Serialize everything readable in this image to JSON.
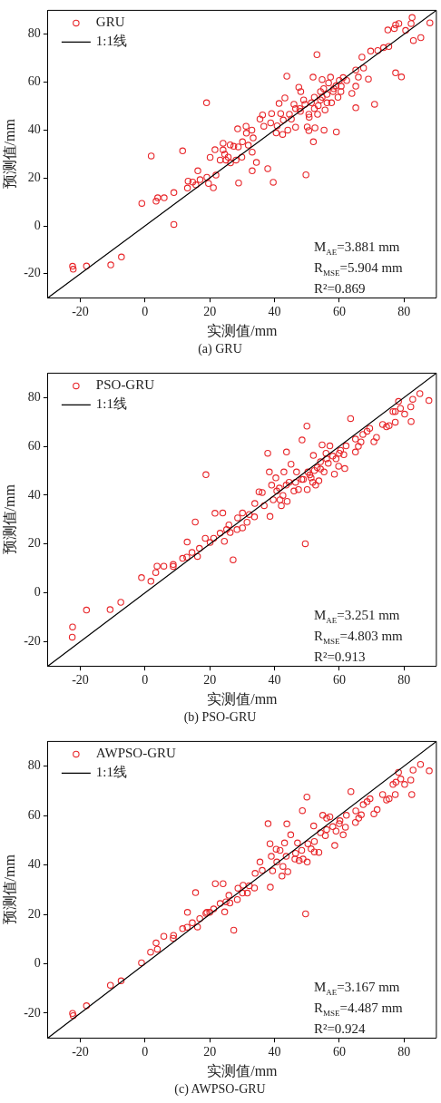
{
  "chart_data": [
    {
      "type": "scatter",
      "title": "(a) GRU",
      "xlabel": "实测值/mm",
      "ylabel": "预测值/mm",
      "xlim": [
        -30,
        90
      ],
      "ylim": [
        -30,
        90
      ],
      "xticks": [
        -20,
        0,
        20,
        40,
        60,
        80
      ],
      "yticks": [
        -20,
        0,
        20,
        40,
        60,
        80
      ],
      "legend": "top left",
      "annotations": [
        "M$_{AE}$=3.881 mm",
        "R$_{MSE}$=5.904 mm",
        "R²=0.869"
      ],
      "series": [
        {
          "name": "GRU",
          "color": "#e8262a",
          "marker": "circle",
          "x": [
            -22.4,
            -22.2,
            -18.1,
            -10.6,
            -7.3,
            -1.0,
            1.9,
            3.4,
            3.9,
            5.9,
            8.9,
            8.9,
            11.6,
            13.1,
            13.3,
            14.7,
            15.7,
            16.3,
            17.0,
            19.0,
            19.1,
            19.6,
            21.1,
            20.1,
            21.6,
            21.9,
            23.2,
            24.1,
            24.1,
            24.6,
            25.0,
            25.7,
            26.4,
            26.3,
            27.4,
            28.8,
            28.9,
            28.1,
            28.6,
            29.9,
            30.1,
            31.2,
            31.3,
            31.9,
            33.0,
            33.1,
            33.1,
            33.4,
            34.4,
            35.5,
            36.3,
            36.7,
            37.9,
            39.1,
            39.6,
            40.5,
            41.4,
            41.9,
            42.5,
            43.2,
            43.8,
            44.1,
            45.2,
            46.0,
            46.5,
            47.5,
            47.8,
            48.1,
            49.0,
            49.7,
            50.1,
            50.6,
            50.7,
            51.9,
            52.0,
            52.3,
            52.5,
            53.1,
            53.5,
            54.2,
            54.7,
            55.3,
            55.6,
            56.2,
            56.7,
            57.3,
            57.6,
            58.3,
            59.1,
            59.6,
            60.0,
            60.6,
            61.2,
            62.3,
            63.9,
            65.1,
            65.1,
            65.1,
            65.9,
            67.0,
            67.5,
            69.0,
            69.7,
            70.9,
            71.9,
            73.7,
            75.3,
            75.0,
            77.0,
            77.4,
            78.4,
            77.4,
            79.2,
            80.5,
            82.2,
            82.5,
            82.9,
            85.2,
            88.0,
            46.5,
            49.4,
            51.4,
            52.3,
            54.2,
            56.2,
            58.1,
            59.0,
            50.6,
            44.6,
            42.7,
            40.8,
            38.8,
            53.3,
            55.2,
            60.5,
            48.0,
            54.7
          ],
          "values": [
            -16.9,
            -18.1,
            -16.8,
            -16.3,
            -13.0,
            9.4,
            29.2,
            10.3,
            11.7,
            11.7,
            13.9,
            0.6,
            31.3,
            15.8,
            18.7,
            18.3,
            17.1,
            23.0,
            19.3,
            51.4,
            20.3,
            17.7,
            15.9,
            28.6,
            31.8,
            21.2,
            27.5,
            34.5,
            31.7,
            29.9,
            27.5,
            28.7,
            26.3,
            33.8,
            33.2,
            33.0,
            17.9,
            27.5,
            40.5,
            28.7,
            35.1,
            41.6,
            38.7,
            33.7,
            40.0,
            30.8,
            23.0,
            36.7,
            26.5,
            44.6,
            46.3,
            41.6,
            23.9,
            46.9,
            18.2,
            38.8,
            51.1,
            46.9,
            38.2,
            53.4,
            62.5,
            40.0,
            44.6,
            50.8,
            41.2,
            57.9,
            49.0,
            56.1,
            52.6,
            21.3,
            41.3,
            39.8,
            45.4,
            62.1,
            35.1,
            53.7,
            40.9,
            71.5,
            50.2,
            56.1,
            61.1,
            40.0,
            48.4,
            54.9,
            59.7,
            62.1,
            51.4,
            57.3,
            39.2,
            53.7,
            60.7,
            58.3,
            61.9,
            60.7,
            55.3,
            58.3,
            49.3,
            65.1,
            62.1,
            70.5,
            65.9,
            61.3,
            73.0,
            50.8,
            73.2,
            74.4,
            74.9,
            81.8,
            82.4,
            83.9,
            84.5,
            63.9,
            62.2,
            81.6,
            84.5,
            87.0,
            77.4,
            78.6,
            84.8,
            49.0,
            50.8,
            51.4,
            49.0,
            52.6,
            51.4,
            56.1,
            58.5,
            46.6,
            46.6,
            44.2,
            41.8,
            43.0,
            46.6,
            57.3,
            56.1,
            47.8,
            53.7
          ]
        },
        {
          "name": "1:1线",
          "type": "line",
          "color": "#000000",
          "marker": "none",
          "x": [
            -30,
            90
          ],
          "values": [
            -30,
            90
          ]
        }
      ]
    },
    {
      "type": "scatter",
      "title": "(b) PSO-GRU",
      "xlabel": "实测值/mm",
      "ylabel": "预测值/mm",
      "xlim": [
        -30,
        90
      ],
      "ylim": [
        -30,
        90
      ],
      "xticks": [
        -20,
        0,
        20,
        40,
        60,
        80
      ],
      "yticks": [
        -20,
        0,
        20,
        40,
        60,
        80
      ],
      "legend": "top left",
      "annotations": [
        "M$_{AE}$=3.251 mm",
        "R$_{MSE}$=4.803 mm",
        "R²=0.913"
      ],
      "series": [
        {
          "name": "PSO-GRU",
          "color": "#e8262a",
          "marker": "circle",
          "x": [
            -22.4,
            -22.5,
            -18.1,
            -10.8,
            -7.5,
            -1.1,
            1.8,
            3.3,
            3.7,
            5.8,
            8.7,
            8.7,
            11.6,
            13.0,
            12.9,
            14.5,
            15.5,
            16.2,
            16.8,
            18.6,
            18.8,
            20.1,
            21.2,
            21.6,
            23.2,
            24.0,
            24.5,
            25.2,
            25.9,
            26.3,
            27.2,
            28.4,
            28.6,
            30.1,
            30.1,
            31.5,
            32.2,
            33.8,
            33.9,
            35.2,
            36.2,
            36.8,
            37.9,
            38.4,
            38.6,
            39.1,
            39.6,
            40.4,
            41.5,
            42.1,
            42.9,
            43.7,
            43.9,
            44.5,
            45.1,
            46.0,
            46.8,
            47.4,
            48.5,
            48.9,
            49.5,
            50.0,
            50.1,
            50.9,
            51.8,
            52.0,
            52.7,
            53.2,
            53.7,
            54.7,
            55.3,
            55.9,
            56.6,
            57.1,
            58.5,
            59.0,
            59.8,
            60.4,
            61.4,
            61.7,
            62.1,
            63.5,
            65.0,
            65.0,
            65.9,
            66.7,
            67.3,
            68.6,
            69.4,
            70.7,
            71.5,
            73.4,
            74.6,
            75.4,
            76.6,
            77.3,
            77.3,
            78.3,
            78.9,
            80.2,
            82.1,
            82.2,
            82.7,
            84.9,
            87.7,
            40.7,
            43.6,
            46.5,
            48.4,
            50.3,
            52.3,
            54.2,
            56.1,
            58.0,
            60.0,
            51.3,
            54.2,
            42.6,
            41.7
          ],
          "values": [
            -14.0,
            -18.2,
            -7.1,
            -6.9,
            -3.9,
            6.2,
            4.7,
            8.3,
            10.9,
            10.9,
            11.6,
            10.8,
            14.1,
            20.8,
            14.6,
            16.5,
            29.0,
            14.9,
            18.2,
            22.3,
            48.4,
            20.6,
            22.3,
            32.6,
            24.4,
            32.7,
            21.1,
            25.9,
            27.8,
            24.7,
            13.5,
            25.9,
            30.7,
            32.7,
            26.6,
            28.9,
            32.1,
            31.1,
            36.6,
            41.4,
            41.1,
            35.7,
            57.2,
            49.5,
            31.3,
            44.1,
            38.1,
            47.1,
            42.9,
            35.7,
            49.5,
            57.7,
            37.5,
            45.3,
            52.7,
            41.7,
            49.5,
            42.3,
            62.6,
            46.5,
            20.1,
            68.3,
            42.3,
            48.3,
            45.3,
            56.3,
            44.1,
            51.3,
            45.9,
            60.6,
            49.5,
            57.2,
            53.1,
            60.2,
            48.6,
            54.9,
            51.9,
            58.4,
            56.6,
            50.9,
            60.2,
            71.4,
            57.7,
            63.0,
            60.0,
            61.8,
            64.9,
            66.2,
            67.4,
            61.9,
            63.7,
            69.0,
            68.0,
            68.5,
            74.3,
            69.9,
            74.3,
            78.4,
            75.6,
            73.2,
            76.2,
            70.2,
            79.3,
            81.6,
            78.8,
            41.7,
            44.1,
            45.3,
            46.5,
            49.5,
            50.1,
            53.7,
            54.9,
            56.0,
            57.2,
            47.1,
            50.7,
            39.9,
            38.1
          ]
        },
        {
          "name": "1:1线",
          "type": "line",
          "color": "#000000",
          "marker": "none",
          "x": [
            -30,
            90
          ],
          "values": [
            -30,
            90
          ]
        }
      ]
    },
    {
      "type": "scatter",
      "title": "(c) AWPSO-GRU",
      "xlabel": "实测值/mm",
      "ylabel": "预测值/mm",
      "xlim": [
        -30,
        90
      ],
      "ylim": [
        -30,
        90
      ],
      "xticks": [
        -20,
        0,
        20,
        40,
        60,
        80
      ],
      "yticks": [
        -20,
        0,
        20,
        40,
        60,
        80
      ],
      "legend": "top left",
      "annotations": [
        "M$_{AE}$=3.167 mm",
        "R$_{MSE}$=4.487 mm",
        "R²=0.924"
      ],
      "series": [
        {
          "name": "AWPSO-GRU",
          "color": "#e8262a",
          "marker": "circle",
          "x": [
            -22.4,
            -22.2,
            -18.1,
            -10.7,
            -7.4,
            -1.1,
            1.7,
            3.8,
            3.4,
            5.8,
            8.7,
            8.8,
            11.6,
            13.1,
            13.0,
            14.6,
            15.6,
            16.2,
            16.9,
            18.8,
            19.1,
            20.0,
            21.2,
            21.7,
            23.2,
            24.1,
            24.6,
            25.0,
            25.9,
            26.2,
            27.4,
            28.5,
            28.7,
            30.1,
            30.3,
            31.6,
            32.2,
            33.8,
            34.0,
            35.5,
            36.2,
            38.0,
            38.6,
            38.7,
            39.0,
            39.4,
            40.5,
            41.7,
            42.3,
            43.1,
            43.8,
            44.1,
            45.0,
            46.3,
            47.1,
            47.6,
            48.6,
            48.8,
            49.6,
            50.0,
            50.1,
            52.1,
            52.3,
            53.7,
            54.9,
            55.7,
            56.1,
            57.1,
            58.6,
            59.0,
            60.2,
            61.2,
            61.9,
            62.2,
            63.6,
            65.0,
            65.1,
            66.0,
            66.8,
            67.4,
            68.6,
            69.5,
            70.7,
            71.7,
            73.4,
            74.6,
            75.4,
            76.6,
            77.3,
            77.5,
            78.3,
            79.0,
            80.2,
            82.1,
            82.4,
            82.8,
            85.1,
            87.8,
            40.7,
            43.6,
            46.5,
            48.4,
            50.3,
            52.3,
            54.2,
            56.1,
            58.0,
            60.0,
            51.3,
            42.6
          ],
          "values": [
            -20.1,
            -21.0,
            -17.0,
            -8.7,
            -6.9,
            0.4,
            4.7,
            5.9,
            8.4,
            11.1,
            10.3,
            11.5,
            14.2,
            20.8,
            14.8,
            16.6,
            28.8,
            14.9,
            18.3,
            20.4,
            20.8,
            20.8,
            22.2,
            32.4,
            24.4,
            32.4,
            21.0,
            25.1,
            27.7,
            24.6,
            13.6,
            26.0,
            30.6,
            28.6,
            31.8,
            28.6,
            31.6,
            30.7,
            36.6,
            41.2,
            37.8,
            56.7,
            48.6,
            31.0,
            43.5,
            37.6,
            46.4,
            45.9,
            35.5,
            48.9,
            56.6,
            37.3,
            52.2,
            42.4,
            48.9,
            41.8,
            62.0,
            42.4,
            20.2,
            67.5,
            41.2,
            55.8,
            45.3,
            45.1,
            60.1,
            51.9,
            58.9,
            59.5,
            47.9,
            53.7,
            57.9,
            52.2,
            55.3,
            60.1,
            69.7,
            57.2,
            61.9,
            58.9,
            60.3,
            64.4,
            65.6,
            66.8,
            60.7,
            62.4,
            68.5,
            66.3,
            66.8,
            72.6,
            68.5,
            73.5,
            77.5,
            74.8,
            72.6,
            74.4,
            68.5,
            78.4,
            80.7,
            78.1,
            41.2,
            43.5,
            44.7,
            45.9,
            48.6,
            49.5,
            53.1,
            54.3,
            55.5,
            56.7,
            46.5,
            39.4
          ]
        },
        {
          "name": "1:1线",
          "type": "line",
          "color": "#000000",
          "marker": "none",
          "x": [
            -30,
            90
          ],
          "values": [
            -30,
            90
          ]
        }
      ]
    }
  ]
}
